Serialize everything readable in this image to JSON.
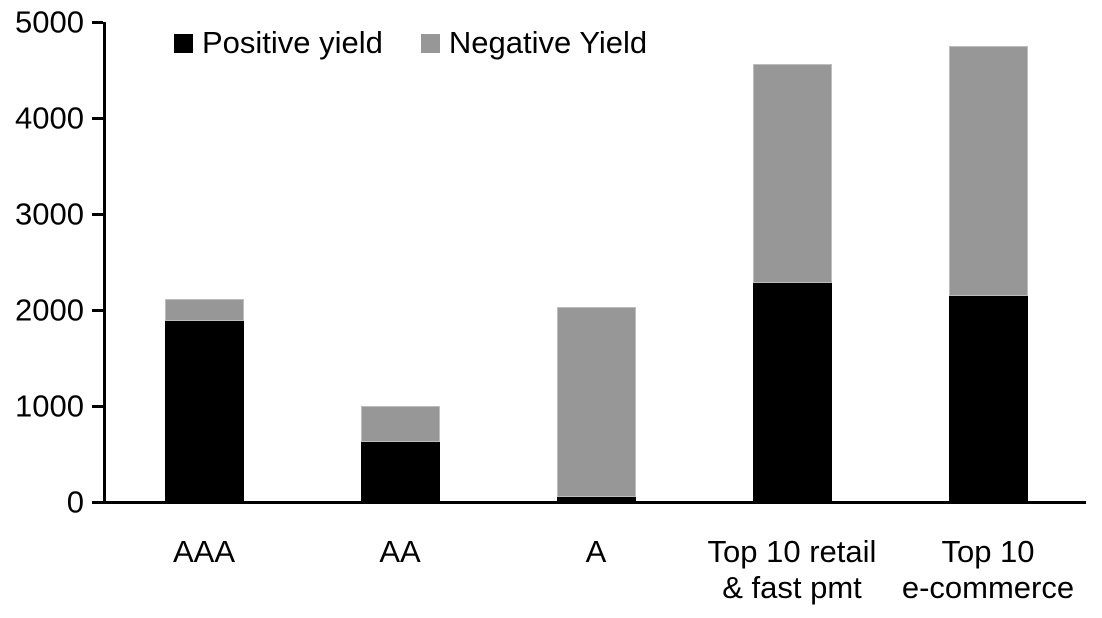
{
  "chart_data": {
    "type": "bar",
    "stacked": true,
    "title": "",
    "xlabel": "",
    "ylabel": "",
    "categories": [
      "AAA",
      "AA",
      "A",
      "Top 10 retail\n& fast pmt",
      "Top 10\ne-commerce"
    ],
    "series": [
      {
        "name": "Positive yield",
        "color": "#000000",
        "edge": null,
        "values": [
          1890,
          620,
          50,
          2280,
          2150
        ]
      },
      {
        "name": "Negative Yield",
        "color": "#979797",
        "edge": "#bdbdbd",
        "values": [
          220,
          380,
          1980,
          2280,
          2600
        ]
      }
    ],
    "totals": [
      2110,
      1000,
      2030,
      4560,
      4750
    ],
    "ylim": [
      0,
      5000
    ],
    "yticks": [
      0,
      1000,
      2000,
      3000,
      4000,
      5000
    ],
    "grid": false,
    "legend_position": "top",
    "axis_color": "#000000",
    "background_color": "#ffffff"
  }
}
